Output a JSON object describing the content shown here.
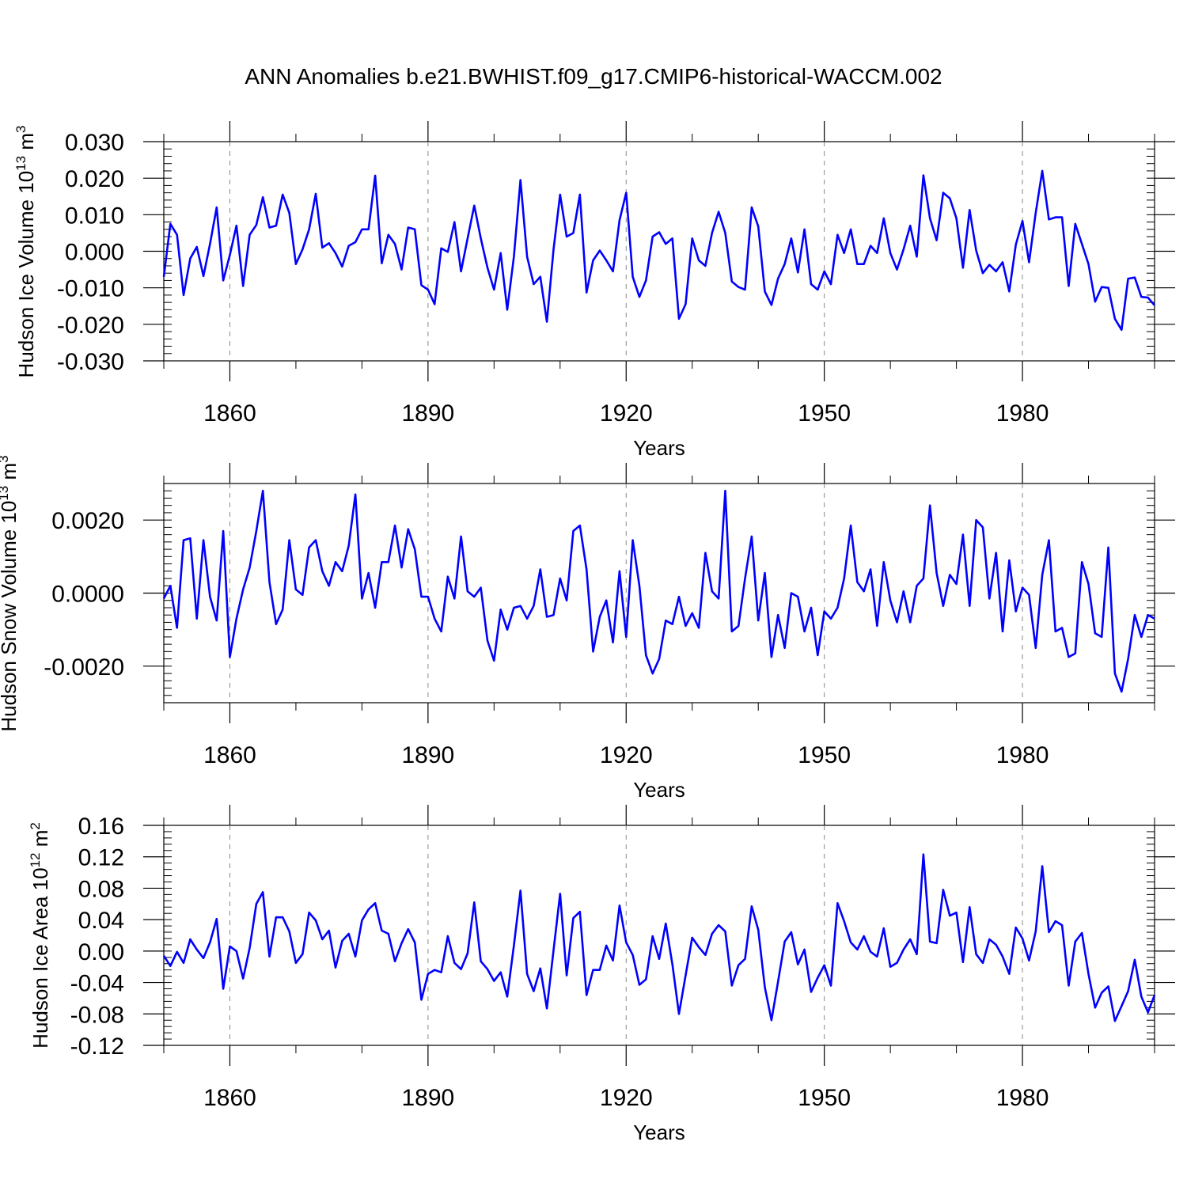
{
  "title": "ANN Anomalies b.e21.BWHIST.f09_g17.CMIP6-historical-WACCM.002",
  "colors": {
    "series": "#0000ff",
    "axis": "#000000",
    "grid": "#888888",
    "background": "#ffffff"
  },
  "chart_data": [
    {
      "type": "line",
      "name": "ice-volume",
      "xlabel": "Years",
      "ylabel_prefix": "Hudson Ice Volume 10",
      "ylabel_exp": "13",
      "ylabel_unit": " m",
      "ylabel_unit_exp": "3",
      "xlim": [
        1850,
        2000
      ],
      "ylim": [
        -0.03,
        0.03
      ],
      "xticks": [
        1860,
        1890,
        1920,
        1950,
        1980
      ],
      "xtick_labels": [
        "1860",
        "1890",
        "1920",
        "1950",
        "1980"
      ],
      "yticks": [
        0.03,
        0.02,
        0.01,
        0.0,
        -0.01,
        -0.02,
        -0.03
      ],
      "ytick_labels": [
        "0.030",
        "0.020",
        "0.010",
        "0.000",
        "-0.010",
        "-0.020",
        "-0.030"
      ],
      "x_start": 1850,
      "x_step": 1,
      "values": [
        -0.007,
        0.0075,
        0.0045,
        -0.012,
        -0.002,
        0.0012,
        -0.0068,
        0.002,
        0.012,
        -0.008,
        -0.001,
        0.007,
        -0.0095,
        0.0045,
        0.0072,
        0.0148,
        0.0065,
        0.007,
        0.0155,
        0.0105,
        -0.0035,
        0.0005,
        0.006,
        0.0157,
        0.001,
        0.0022,
        -0.0005,
        -0.0042,
        0.0015,
        0.0025,
        0.006,
        0.006,
        0.0207,
        -0.0033,
        0.0045,
        0.002,
        -0.005,
        0.0065,
        0.006,
        -0.0093,
        -0.0105,
        -0.0145,
        0.0008,
        -0.0002,
        0.008,
        -0.0055,
        0.0035,
        0.0125,
        0.0035,
        -0.0045,
        -0.0105,
        -0.0005,
        -0.016,
        -0.0015,
        0.0195,
        -0.0015,
        -0.009,
        -0.007,
        -0.0193,
        0.0005,
        0.0155,
        0.004,
        0.005,
        0.0155,
        -0.0113,
        -0.0025,
        0.0002,
        -0.0025,
        -0.0055,
        0.0085,
        0.016,
        -0.007,
        -0.0125,
        -0.008,
        0.004,
        0.0052,
        0.002,
        0.0035,
        -0.0185,
        -0.0145,
        0.0035,
        -0.0025,
        -0.004,
        0.005,
        0.0108,
        0.005,
        -0.0083,
        -0.0098,
        -0.0105,
        0.012,
        0.0068,
        -0.011,
        -0.0147,
        -0.0075,
        -0.0035,
        0.0035,
        -0.0058,
        0.006,
        -0.009,
        -0.0105,
        -0.0055,
        -0.009,
        0.0045,
        -0.0005,
        0.006,
        -0.0035,
        -0.0035,
        0.0015,
        -0.0005,
        0.009,
        -0.0005,
        -0.005,
        0.0005,
        0.007,
        -0.0015,
        0.0208,
        0.009,
        0.003,
        0.016,
        0.0145,
        0.009,
        -0.0045,
        0.0113,
        0.0002,
        -0.006,
        -0.0037,
        -0.0055,
        -0.003,
        -0.011,
        0.0018,
        0.0083,
        -0.003,
        0.0105,
        0.022,
        0.0087,
        0.0093,
        0.0093,
        -0.0095,
        0.0075,
        0.002,
        -0.0035,
        -0.0138,
        -0.0098,
        -0.01,
        -0.0185,
        -0.0215,
        -0.0075,
        -0.0072,
        -0.0125,
        -0.0127,
        -0.0148
      ]
    },
    {
      "type": "line",
      "name": "snow-volume",
      "xlabel": "Years",
      "ylabel_prefix": "Hudson Snow Volume 10",
      "ylabel_exp": "13",
      "ylabel_unit": " m",
      "ylabel_unit_exp": "3",
      "xlim": [
        1850,
        2000
      ],
      "ylim": [
        -0.003,
        0.003
      ],
      "xticks": [
        1860,
        1890,
        1920,
        1950,
        1980
      ],
      "xtick_labels": [
        "1860",
        "1890",
        "1920",
        "1950",
        "1980"
      ],
      "yticks": [
        0.002,
        0.0,
        -0.002
      ],
      "ytick_labels": [
        "0.0020",
        "0.0000",
        "-0.0020"
      ],
      "x_start": 1850,
      "x_step": 1,
      "values": [
        -0.00015,
        0.0002,
        -0.00095,
        0.00145,
        0.0015,
        -0.0007,
        0.00145,
        -0.0001,
        -0.00075,
        0.0017,
        -0.00175,
        -0.0007,
        0.0001,
        0.0007,
        0.0017,
        0.0028,
        0.0003,
        -0.00085,
        -0.00045,
        0.00145,
        0.0001,
        -5e-05,
        0.00125,
        0.00145,
        0.0006,
        0.0002,
        0.00085,
        0.0006,
        0.0013,
        0.0027,
        -0.00015,
        0.00055,
        -0.0004,
        0.00085,
        0.00085,
        0.00185,
        0.0007,
        0.00175,
        0.0012,
        -0.0001,
        -0.0001,
        -0.0007,
        -0.00105,
        0.00045,
        -0.00015,
        0.00155,
        5e-05,
        -0.0001,
        0.00015,
        -0.0013,
        -0.00185,
        -0.00045,
        -0.001,
        -0.0004,
        -0.00035,
        -0.0007,
        -0.00035,
        0.00065,
        -0.00065,
        -0.0006,
        0.0004,
        -0.0002,
        0.0017,
        0.00185,
        0.00065,
        -0.0016,
        -0.00065,
        -0.0002,
        -0.00135,
        0.0006,
        -0.0012,
        0.00145,
        0.0002,
        -0.0017,
        -0.0022,
        -0.0018,
        -0.00075,
        -0.00085,
        -0.0001,
        -0.0009,
        -0.00055,
        -0.00095,
        0.0011,
        5e-05,
        -0.00015,
        0.0028,
        -0.00105,
        -0.0009,
        0.0004,
        0.00155,
        -0.00075,
        0.00055,
        -0.00175,
        -0.0006,
        -0.0015,
        0.0,
        -0.0001,
        -0.00105,
        -0.0004,
        -0.0017,
        -0.0005,
        -0.0007,
        -0.0004,
        0.0004,
        0.00185,
        0.0003,
        5e-05,
        0.00065,
        -0.0009,
        0.00085,
        -0.0002,
        -0.0008,
        5e-05,
        -0.0008,
        0.0002,
        0.0004,
        0.0024,
        0.00055,
        -0.00035,
        0.0005,
        0.00025,
        0.0016,
        -0.00035,
        0.002,
        0.0018,
        -0.00015,
        0.0011,
        -0.00105,
        0.0009,
        -0.0005,
        0.00015,
        -5e-05,
        -0.0015,
        0.0005,
        0.00145,
        -0.00105,
        -0.00095,
        -0.00175,
        -0.00165,
        0.00085,
        0.00025,
        -0.0011,
        -0.0012,
        0.00125,
        -0.0022,
        -0.0027,
        -0.0018,
        -0.0006,
        -0.0012,
        -0.0006,
        -0.0007
      ]
    },
    {
      "type": "line",
      "name": "ice-area",
      "xlabel": "Years",
      "ylabel_prefix": "Hudson Ice Area 10",
      "ylabel_exp": "12",
      "ylabel_unit": " m",
      "ylabel_unit_exp": "2",
      "xlim": [
        1850,
        2000
      ],
      "ylim": [
        -0.12,
        0.16
      ],
      "xticks": [
        1860,
        1890,
        1920,
        1950,
        1980
      ],
      "xtick_labels": [
        "1860",
        "1890",
        "1920",
        "1950",
        "1980"
      ],
      "yticks": [
        0.16,
        0.12,
        0.08,
        0.04,
        0.0,
        -0.04,
        -0.08,
        -0.12
      ],
      "ytick_labels": [
        "0.16",
        "0.12",
        "0.08",
        "0.04",
        "0.00",
        "-0.04",
        "-0.08",
        "-0.12"
      ],
      "x_start": 1850,
      "x_step": 1,
      "values": [
        -0.006,
        -0.019,
        -0.001,
        -0.015,
        0.015,
        0.002,
        -0.009,
        0.011,
        0.041,
        -0.048,
        0.006,
        0.0,
        -0.035,
        0.004,
        0.06,
        0.075,
        -0.007,
        0.043,
        0.043,
        0.025,
        -0.015,
        -0.004,
        0.049,
        0.039,
        0.015,
        0.026,
        -0.021,
        0.013,
        0.022,
        -0.007,
        0.039,
        0.053,
        0.061,
        0.026,
        0.022,
        -0.013,
        0.01,
        0.028,
        0.011,
        -0.062,
        -0.029,
        -0.024,
        -0.027,
        0.019,
        -0.015,
        -0.023,
        -0.003,
        0.062,
        -0.013,
        -0.023,
        -0.038,
        -0.027,
        -0.058,
        0.007,
        0.077,
        -0.029,
        -0.051,
        -0.022,
        -0.073,
        0.001,
        0.073,
        -0.031,
        0.042,
        0.05,
        -0.056,
        -0.024,
        -0.024,
        0.007,
        -0.012,
        0.058,
        0.011,
        -0.005,
        -0.043,
        -0.036,
        0.019,
        -0.01,
        0.035,
        -0.017,
        -0.08,
        -0.031,
        0.017,
        0.005,
        -0.005,
        0.022,
        0.033,
        0.025,
        -0.044,
        -0.018,
        -0.01,
        0.057,
        0.027,
        -0.046,
        -0.088,
        -0.039,
        0.012,
        0.024,
        -0.017,
        0.002,
        -0.052,
        -0.034,
        -0.018,
        -0.044,
        0.061,
        0.038,
        0.011,
        0.002,
        0.019,
        -0.001,
        -0.007,
        0.029,
        -0.02,
        -0.015,
        0.002,
        0.015,
        -0.004,
        0.123,
        0.012,
        0.01,
        0.078,
        0.045,
        0.049,
        -0.014,
        0.056,
        -0.004,
        -0.015,
        0.015,
        0.008,
        -0.007,
        -0.029,
        0.03,
        0.016,
        -0.012,
        0.025,
        0.108,
        0.024,
        0.038,
        0.033,
        -0.044,
        0.012,
        0.023,
        -0.029,
        -0.072,
        -0.053,
        -0.045,
        -0.089,
        -0.07,
        -0.051,
        -0.011,
        -0.058,
        -0.078,
        -0.056
      ]
    }
  ]
}
